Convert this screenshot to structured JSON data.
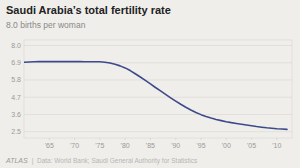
{
  "chart_data": {
    "type": "line",
    "title": "Saudi Arabia’s total fertility rate",
    "subtitle": "8.0 births per woman",
    "annotations": [
      "ATLAS",
      "|  Data: World Bank; Saudi General Authority for Statistics"
    ],
    "color": "#3d4a8a",
    "grid": true,
    "xlim": [
      1960,
      2013
    ],
    "xticks": [
      {
        "value": 1965,
        "label": "'65"
      },
      {
        "value": 1970,
        "label": "'70"
      },
      {
        "value": 1975,
        "label": "'75"
      },
      {
        "value": 1980,
        "label": "'80"
      },
      {
        "value": 1985,
        "label": "'85"
      },
      {
        "value": 1990,
        "label": "'90"
      },
      {
        "value": 1995,
        "label": "'95"
      },
      {
        "value": 2000,
        "label": "'00"
      },
      {
        "value": 2005,
        "label": "'05"
      },
      {
        "value": 2010,
        "label": "'10"
      }
    ],
    "ylim": [
      2.1,
      8.35
    ],
    "yticks": [
      2.5,
      3.6,
      4.7,
      5.8,
      6.9,
      {
        "value": 8.0,
        "label": "8.0"
      }
    ],
    "x": [
      1960,
      1961,
      1962,
      1963,
      1964,
      1965,
      1966,
      1967,
      1968,
      1969,
      1970,
      1971,
      1972,
      1973,
      1974,
      1975,
      1976,
      1977,
      1978,
      1979,
      1980,
      1981,
      1982,
      1983,
      1984,
      1985,
      1986,
      1987,
      1988,
      1989,
      1990,
      1991,
      1992,
      1993,
      1994,
      1995,
      1996,
      1997,
      1998,
      1999,
      2000,
      2001,
      2002,
      2003,
      2004,
      2005,
      2006,
      2007,
      2008,
      2009,
      2010,
      2011,
      2012
    ],
    "values": [
      6.93,
      6.95,
      6.96,
      6.97,
      6.97,
      6.98,
      6.97,
      6.97,
      6.97,
      6.97,
      6.97,
      6.97,
      6.96,
      6.96,
      6.96,
      6.96,
      6.93,
      6.88,
      6.8,
      6.7,
      6.57,
      6.4,
      6.2,
      5.99,
      5.77,
      5.55,
      5.32,
      5.1,
      4.88,
      4.66,
      4.45,
      4.25,
      4.06,
      3.89,
      3.73,
      3.59,
      3.47,
      3.37,
      3.28,
      3.21,
      3.14,
      3.08,
      3.03,
      2.98,
      2.93,
      2.88,
      2.83,
      2.79,
      2.75,
      2.72,
      2.69,
      2.67,
      2.65
    ]
  }
}
